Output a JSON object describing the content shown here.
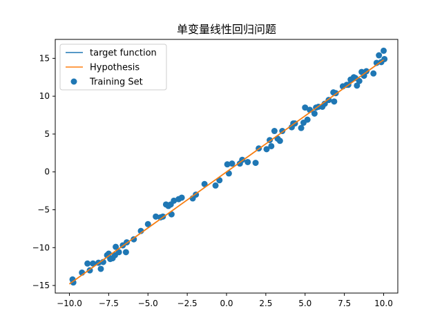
{
  "chart_data": {
    "type": "line",
    "title": "单变量线性回归问题",
    "xlabel": "",
    "ylabel": "",
    "xlim": [
      -10.9,
      10.9
    ],
    "ylim": [
      -16.0,
      17.5
    ],
    "grid": false,
    "legend_position": "top-left",
    "xticks": [
      -10.0,
      -7.5,
      -5.0,
      -2.5,
      0.0,
      2.5,
      5.0,
      7.5,
      10.0
    ],
    "xtick_labels": [
      "−10.0",
      "−7.5",
      "−5.0",
      "−2.5",
      "0.0",
      "2.5",
      "5.0",
      "7.5",
      "10.0"
    ],
    "yticks": [
      -15,
      -10,
      -5,
      0,
      5,
      10,
      15
    ],
    "ytick_labels": [
      "−15",
      "−10",
      "−5",
      "0",
      "5",
      "10",
      "15"
    ],
    "series": [
      {
        "name": "target function",
        "kind": "line",
        "color": "#1f77b4",
        "x": [
          -10.0,
          10.0
        ],
        "y": [
          -14.8,
          14.8
        ]
      },
      {
        "name": "Hypothesis",
        "kind": "line",
        "color": "#ff7f0e",
        "x": [
          -10.0,
          10.0
        ],
        "y": [
          -14.8,
          14.8
        ]
      },
      {
        "name": "Training Set",
        "kind": "scatter",
        "color": "#1f77b4",
        "points": [
          [
            -9.8,
            -14.2
          ],
          [
            -9.75,
            -14.6
          ],
          [
            -9.2,
            -13.3
          ],
          [
            -8.85,
            -12.1
          ],
          [
            -8.7,
            -13.0
          ],
          [
            -8.5,
            -12.1
          ],
          [
            -8.15,
            -12.0
          ],
          [
            -8.0,
            -12.8
          ],
          [
            -7.85,
            -11.9
          ],
          [
            -7.6,
            -11.0
          ],
          [
            -7.5,
            -10.8
          ],
          [
            -7.4,
            -11.5
          ],
          [
            -7.25,
            -11.4
          ],
          [
            -7.1,
            -11.0
          ],
          [
            -7.05,
            -9.9
          ],
          [
            -6.85,
            -10.6
          ],
          [
            -6.6,
            -9.7
          ],
          [
            -6.4,
            -10.6
          ],
          [
            -6.35,
            -9.3
          ],
          [
            -5.9,
            -8.9
          ],
          [
            -5.45,
            -7.8
          ],
          [
            -5.0,
            -6.9
          ],
          [
            -4.5,
            -5.9
          ],
          [
            -4.2,
            -6.0
          ],
          [
            -4.05,
            -5.9
          ],
          [
            -3.85,
            -4.3
          ],
          [
            -3.7,
            -4.5
          ],
          [
            -3.55,
            -4.3
          ],
          [
            -3.5,
            -5.6
          ],
          [
            -3.35,
            -3.8
          ],
          [
            -3.05,
            -3.6
          ],
          [
            -2.85,
            -3.4
          ],
          [
            -2.15,
            -3.5
          ],
          [
            -1.95,
            -3.0
          ],
          [
            -1.4,
            -1.6
          ],
          [
            -0.7,
            -1.8
          ],
          [
            -0.45,
            -1.1
          ],
          [
            0.05,
            1.0
          ],
          [
            0.15,
            -0.2
          ],
          [
            0.35,
            1.1
          ],
          [
            0.85,
            1.1
          ],
          [
            1.0,
            1.6
          ],
          [
            1.35,
            1.3
          ],
          [
            1.85,
            1.2
          ],
          [
            2.05,
            3.1
          ],
          [
            2.55,
            3.0
          ],
          [
            2.75,
            4.2
          ],
          [
            2.85,
            3.4
          ],
          [
            3.05,
            5.4
          ],
          [
            3.25,
            4.4
          ],
          [
            3.4,
            4.1
          ],
          [
            3.55,
            5.4
          ],
          [
            4.15,
            5.9
          ],
          [
            4.25,
            6.4
          ],
          [
            4.35,
            6.4
          ],
          [
            4.75,
            5.8
          ],
          [
            4.9,
            6.5
          ],
          [
            5.0,
            8.5
          ],
          [
            5.15,
            6.9
          ],
          [
            5.3,
            8.2
          ],
          [
            5.6,
            7.7
          ],
          [
            5.7,
            8.5
          ],
          [
            5.85,
            8.6
          ],
          [
            6.1,
            8.6
          ],
          [
            6.25,
            9.0
          ],
          [
            6.5,
            9.5
          ],
          [
            6.8,
            10.5
          ],
          [
            6.85,
            9.3
          ],
          [
            6.95,
            10.4
          ],
          [
            7.4,
            11.3
          ],
          [
            7.65,
            11.5
          ],
          [
            7.75,
            11.5
          ],
          [
            7.9,
            12.2
          ],
          [
            8.1,
            12.5
          ],
          [
            8.2,
            12.4
          ],
          [
            8.3,
            11.4
          ],
          [
            8.45,
            12.0
          ],
          [
            8.6,
            13.2
          ],
          [
            8.75,
            12.7
          ],
          [
            8.9,
            13.3
          ],
          [
            9.35,
            13.0
          ],
          [
            9.55,
            14.4
          ],
          [
            9.7,
            15.4
          ],
          [
            9.85,
            14.5
          ],
          [
            10.0,
            16.0
          ],
          [
            10.05,
            14.9
          ]
        ]
      }
    ]
  }
}
